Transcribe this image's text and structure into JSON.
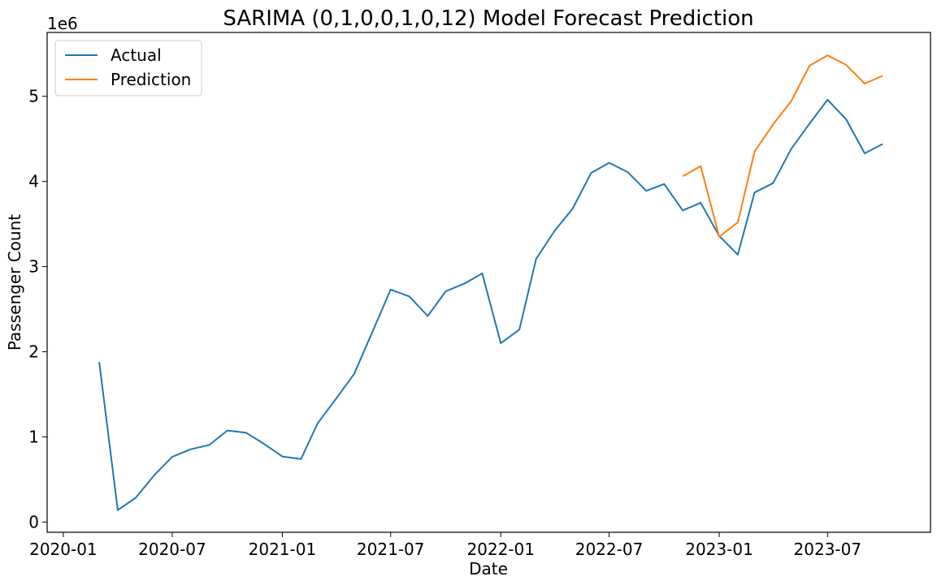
{
  "chart_data": {
    "type": "line",
    "title": "SARIMA (0,1,0,0,1,0,12) Model Forecast Prediction",
    "xlabel": "Date",
    "ylabel": "Passenger Count",
    "y_offset_label": "1e6",
    "y_scale": 1000000,
    "xlim": [
      "2019-12-05",
      "2023-12-20"
    ],
    "ylim": [
      -120000,
      5750000
    ],
    "x_ticks": [
      "2020-01",
      "2020-07",
      "2021-01",
      "2021-07",
      "2022-01",
      "2022-07",
      "2023-01",
      "2023-07"
    ],
    "y_ticks": [
      0,
      1,
      2,
      3,
      4,
      5
    ],
    "grid": false,
    "legend_position": "top-left",
    "series": [
      {
        "name": "Actual",
        "color": "#1f77b4",
        "points": [
          [
            "2020-03-01",
            1880000
          ],
          [
            "2020-04-01",
            140000
          ],
          [
            "2020-05-01",
            285000
          ],
          [
            "2020-06-01",
            550000
          ],
          [
            "2020-07-01",
            765000
          ],
          [
            "2020-08-01",
            855000
          ],
          [
            "2020-09-01",
            905000
          ],
          [
            "2020-10-01",
            1075000
          ],
          [
            "2020-11-01",
            1050000
          ],
          [
            "2020-12-01",
            920000
          ],
          [
            "2021-01-01",
            770000
          ],
          [
            "2021-02-01",
            740000
          ],
          [
            "2021-03-01",
            1160000
          ],
          [
            "2021-04-01",
            1450000
          ],
          [
            "2021-05-01",
            1740000
          ],
          [
            "2021-06-01",
            2240000
          ],
          [
            "2021-07-01",
            2730000
          ],
          [
            "2021-08-01",
            2650000
          ],
          [
            "2021-09-01",
            2420000
          ],
          [
            "2021-10-01",
            2710000
          ],
          [
            "2021-11-01",
            2800000
          ],
          [
            "2021-12-01",
            2920000
          ],
          [
            "2022-01-01",
            2100000
          ],
          [
            "2022-02-01",
            2260000
          ],
          [
            "2022-03-01",
            3090000
          ],
          [
            "2022-04-01",
            3420000
          ],
          [
            "2022-05-01",
            3680000
          ],
          [
            "2022-06-01",
            4100000
          ],
          [
            "2022-07-01",
            4220000
          ],
          [
            "2022-08-01",
            4110000
          ],
          [
            "2022-09-01",
            3890000
          ],
          [
            "2022-10-01",
            3970000
          ],
          [
            "2022-11-01",
            3660000
          ],
          [
            "2022-12-01",
            3750000
          ],
          [
            "2023-01-01",
            3360000
          ],
          [
            "2023-02-01",
            3140000
          ],
          [
            "2023-03-01",
            3870000
          ],
          [
            "2023-04-01",
            3980000
          ],
          [
            "2023-05-01",
            4380000
          ],
          [
            "2023-06-01",
            4680000
          ],
          [
            "2023-07-01",
            4960000
          ],
          [
            "2023-08-01",
            4730000
          ],
          [
            "2023-09-01",
            4330000
          ],
          [
            "2023-10-01",
            4440000
          ]
        ]
      },
      {
        "name": "Prediction",
        "color": "#ff7f0e",
        "points": [
          [
            "2022-11-01",
            4060000
          ],
          [
            "2022-12-01",
            4180000
          ],
          [
            "2023-01-01",
            3350000
          ],
          [
            "2023-02-01",
            3520000
          ],
          [
            "2023-03-01",
            4350000
          ],
          [
            "2023-04-01",
            4670000
          ],
          [
            "2023-05-01",
            4940000
          ],
          [
            "2023-06-01",
            5360000
          ],
          [
            "2023-07-01",
            5480000
          ],
          [
            "2023-08-01",
            5370000
          ],
          [
            "2023-09-01",
            5150000
          ],
          [
            "2023-10-01",
            5240000
          ]
        ]
      }
    ]
  }
}
